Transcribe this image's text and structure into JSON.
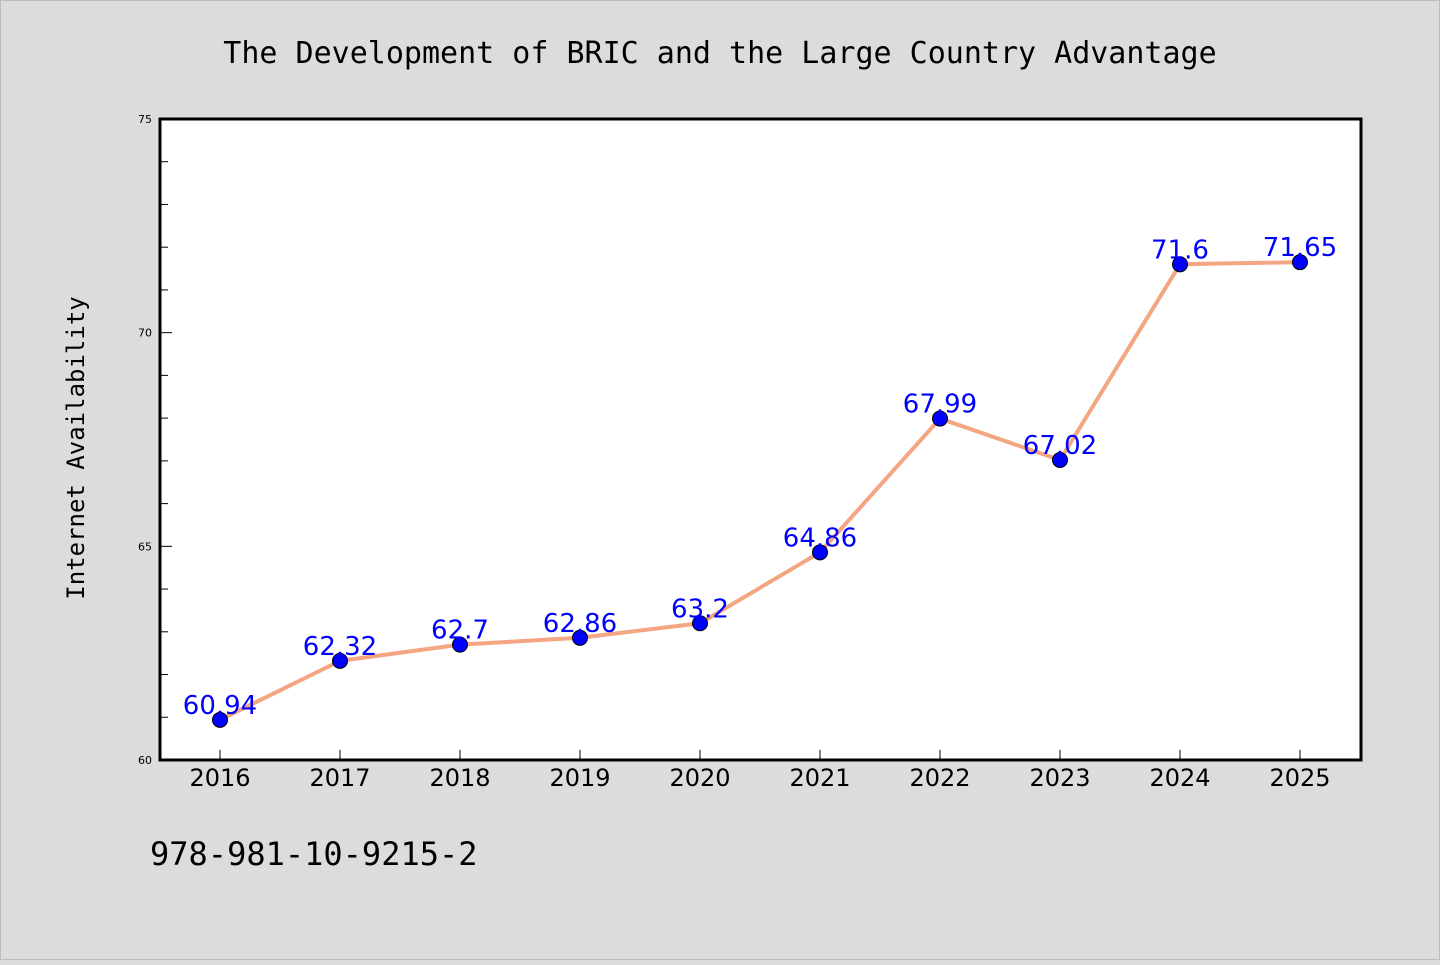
{
  "chart_data": {
    "type": "line",
    "title": "The Development of BRIC and the Large Country Advantage",
    "xlabel": "",
    "ylabel": "Internet Availability",
    "categories": [
      "2016",
      "2017",
      "2018",
      "2019",
      "2020",
      "2021",
      "2022",
      "2023",
      "2024",
      "2025"
    ],
    "series": [
      {
        "values": [
          60.94,
          62.32,
          62.7,
          62.86,
          63.2,
          64.86,
          67.99,
          67.02,
          71.6,
          71.65
        ],
        "labels": [
          "60.94",
          "62.32",
          "62.7",
          "62.86",
          "63.2",
          "64.86",
          "67.99",
          "67.02",
          "71.6",
          "71.65"
        ]
      }
    ],
    "ylim": [
      60,
      75
    ],
    "yticks": [
      "60",
      "65",
      "70",
      "75"
    ],
    "grid": false,
    "colors": {
      "line": "#f4a582",
      "marker": "#0000ff",
      "data_label": "#0000ff",
      "background": "#dcdcdc",
      "plot_background": "#ffffff"
    }
  },
  "footnote": "978-981-10-9215-2"
}
